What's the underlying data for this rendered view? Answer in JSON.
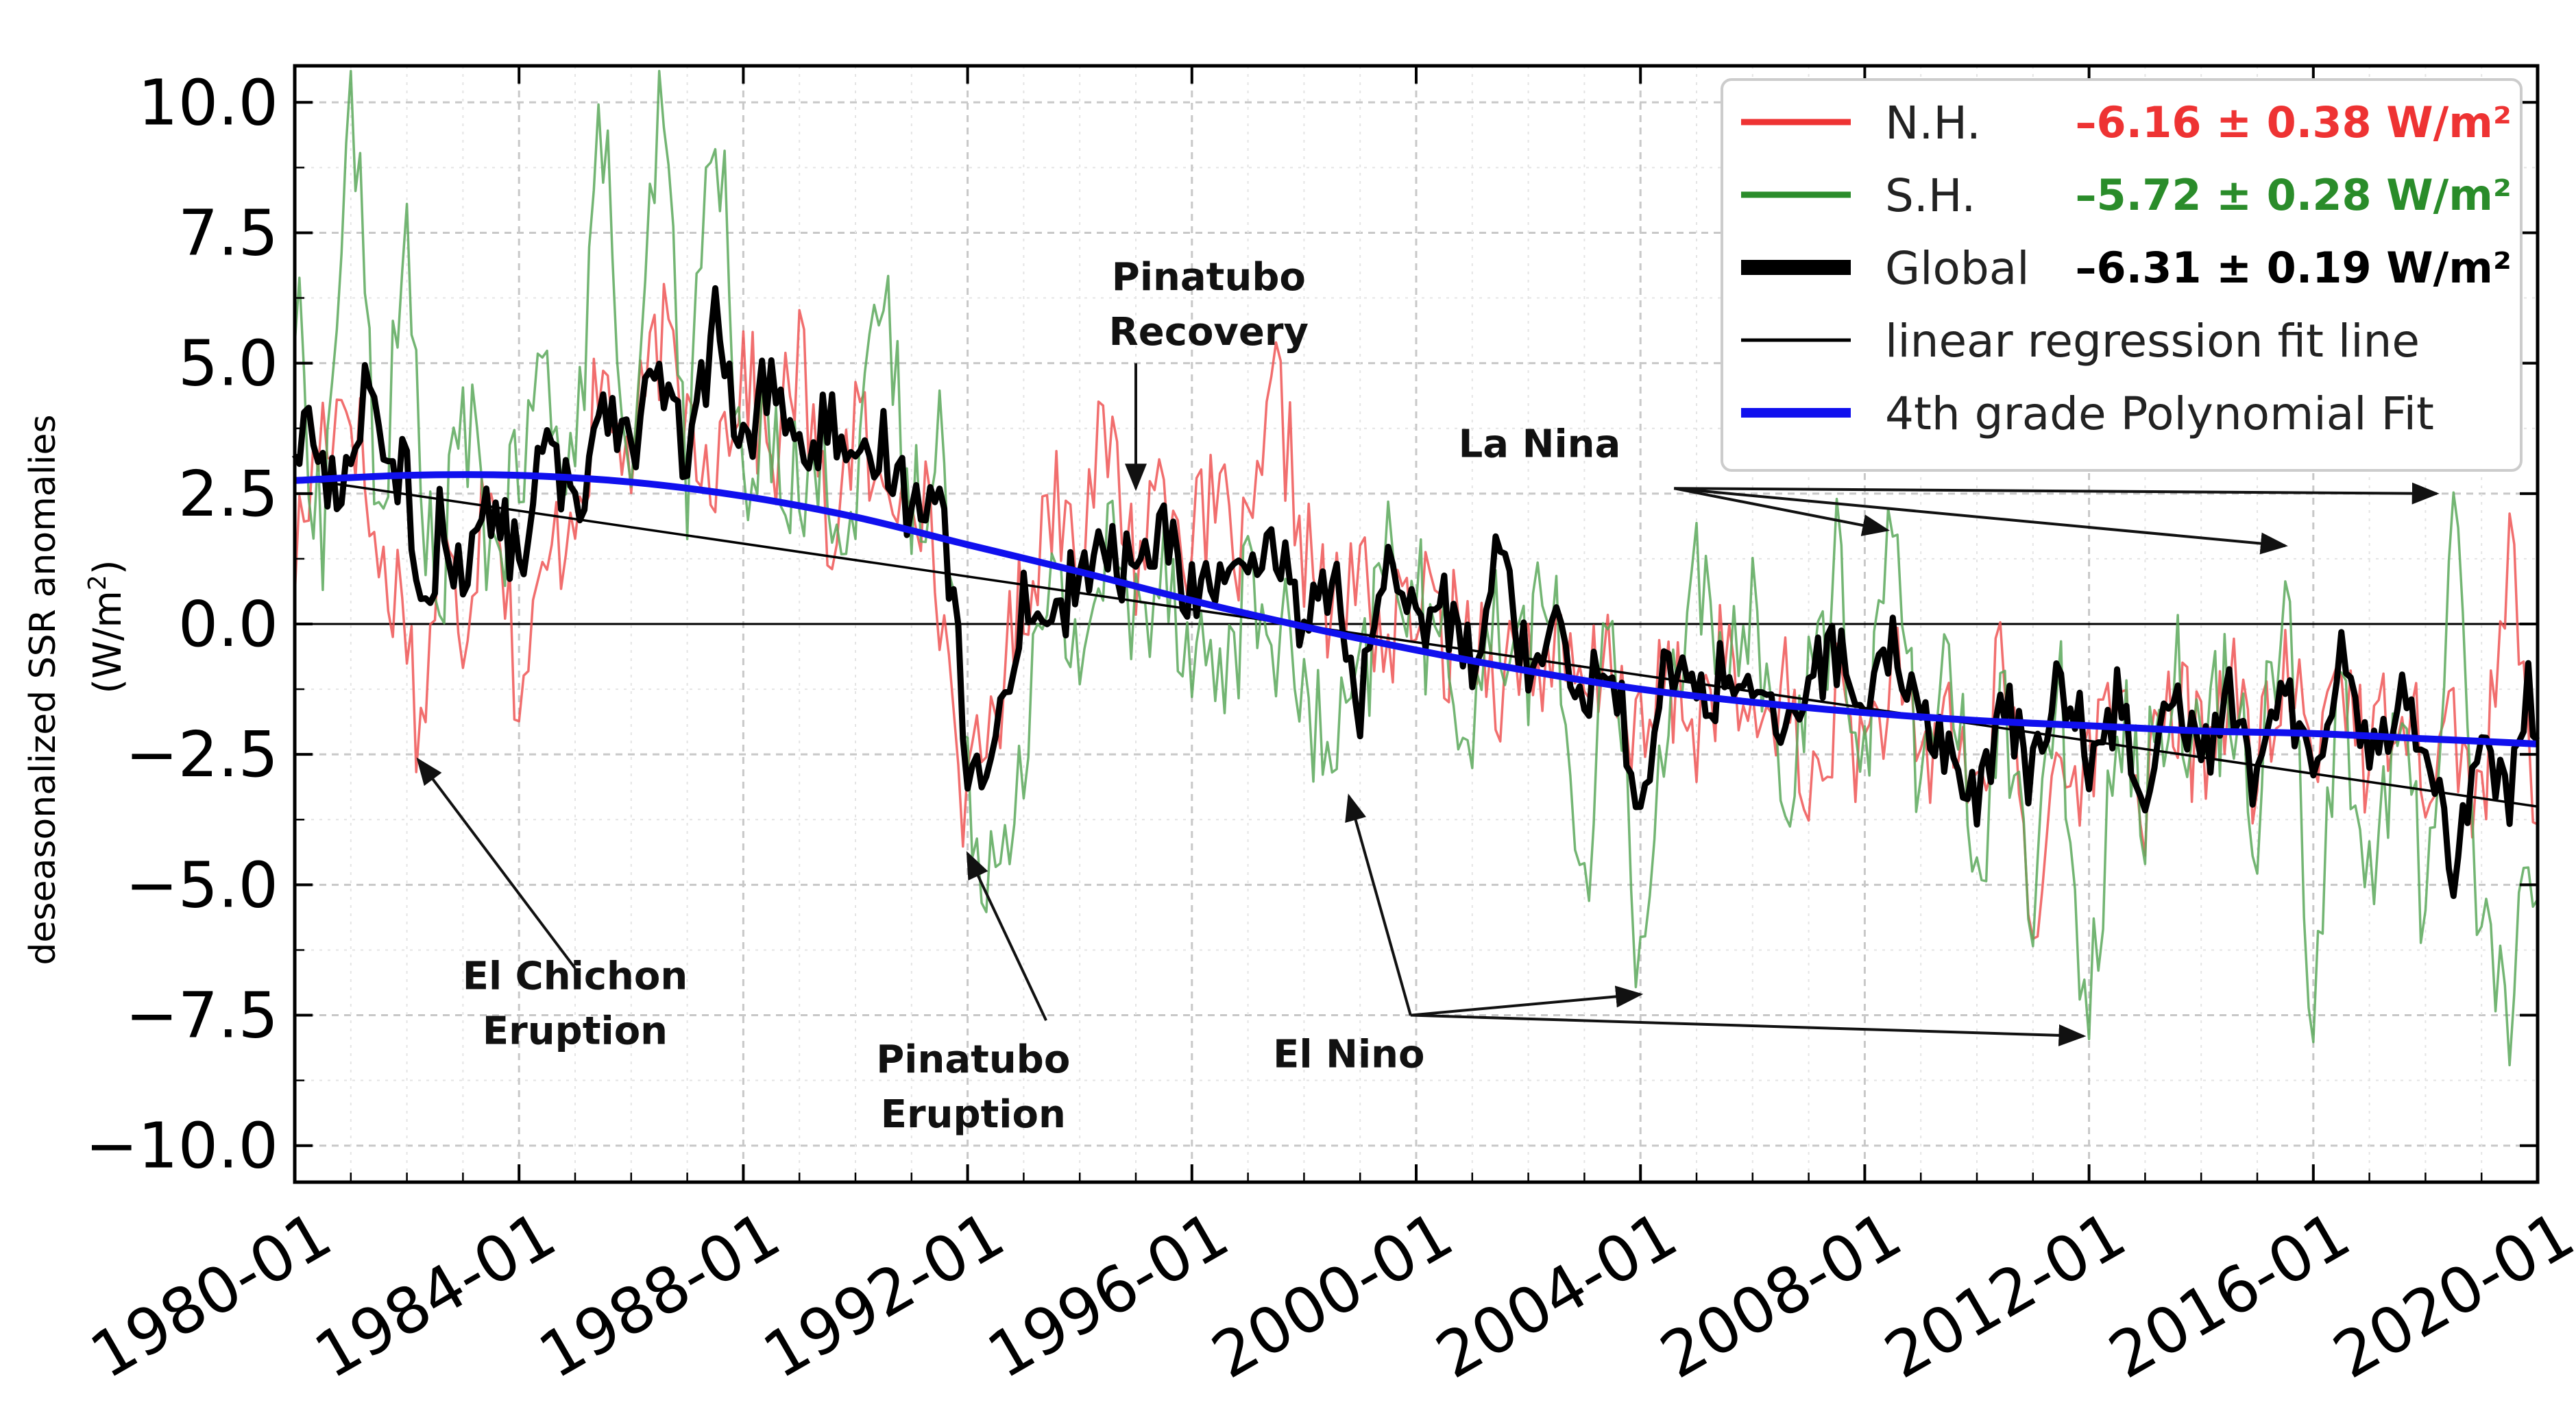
{
  "chart_data": {
    "type": "line",
    "ylabel": "deseasonalized SSR anomalies",
    "yunit_base": "(W/m",
    "yunit_sup": "2",
    "yunit_close": ")",
    "xlim": [
      1980.0,
      2020.0
    ],
    "ylim": [
      -10.7,
      10.7
    ],
    "xticks": [
      1980,
      1984,
      1988,
      1992,
      1996,
      2000,
      2004,
      2008,
      2012,
      2016,
      2020
    ],
    "xtick_labels": [
      "1980-01",
      "1984-01",
      "1988-01",
      "1992-01",
      "1996-01",
      "2000-01",
      "2004-01",
      "2008-01",
      "2012-01",
      "2016-01",
      "2020-01"
    ],
    "yticks": [
      10.0,
      7.5,
      5.0,
      2.5,
      0.0,
      -2.5,
      -5.0,
      -7.5,
      -10.0
    ],
    "ytick_labels": [
      "10.0",
      "7.5",
      "5.0",
      "2.5",
      "0.0",
      "−2.5",
      "−5.0",
      "−7.5",
      "−10.0"
    ],
    "grid": true,
    "zero_line": true,
    "legend_position": "top-right",
    "legend": [
      {
        "label": "N.H.",
        "stat": "–6.16 ± 0.38 W/m²",
        "color": "#ee3333",
        "width": 9
      },
      {
        "label": "S.H.",
        "stat": "–5.72 ± 0.28 W/m²",
        "color": "#2a8c2a",
        "width": 9
      },
      {
        "label": "Global",
        "stat": "–6.31 ± 0.19 W/m²",
        "color": "#000000",
        "width": 22
      },
      {
        "label": "linear regression fit line",
        "stat": "",
        "color": "#000000",
        "width": 5
      },
      {
        "label": "4th grade Polynomial Fit",
        "stat": "",
        "color": "#1010ee",
        "width": 14
      }
    ],
    "series": [
      {
        "name": "N.H.",
        "color": "#ee5555",
        "anchors": [
          [
            1980.0,
            1.2
          ],
          [
            1980.5,
            3.8
          ],
          [
            1981.0,
            4.5
          ],
          [
            1981.5,
            1.0
          ],
          [
            1982.0,
            0.5
          ],
          [
            1982.2,
            -2.5
          ],
          [
            1982.6,
            1.5
          ],
          [
            1983.0,
            0.0
          ],
          [
            1983.5,
            3.5
          ],
          [
            1984.0,
            -1.5
          ],
          [
            1984.5,
            1.0
          ],
          [
            1985.0,
            2.5
          ],
          [
            1985.5,
            4.5
          ],
          [
            1986.0,
            3.0
          ],
          [
            1986.5,
            5.5
          ],
          [
            1987.0,
            4.0
          ],
          [
            1987.5,
            3.2
          ],
          [
            1988.0,
            5.0
          ],
          [
            1988.5,
            3.0
          ],
          [
            1989.0,
            5.2
          ],
          [
            1989.5,
            1.5
          ],
          [
            1990.0,
            4.0
          ],
          [
            1990.5,
            2.0
          ],
          [
            1991.0,
            3.5
          ],
          [
            1991.5,
            0.5
          ],
          [
            1992.0,
            -3.7
          ],
          [
            1992.5,
            -1.5
          ],
          [
            1993.0,
            0.5
          ],
          [
            1993.5,
            2.5
          ],
          [
            1994.0,
            2.0
          ],
          [
            1994.5,
            3.5
          ],
          [
            1995.0,
            1.2
          ],
          [
            1995.5,
            3.0
          ],
          [
            1996.0,
            1.5
          ],
          [
            1996.5,
            2.2
          ],
          [
            1997.0,
            1.0
          ],
          [
            1997.5,
            4.5
          ],
          [
            1998.0,
            1.5
          ],
          [
            1998.5,
            0.0
          ],
          [
            1999.0,
            1.0
          ],
          [
            1999.5,
            -0.5
          ],
          [
            2000.0,
            0.5
          ],
          [
            2000.5,
            -0.3
          ],
          [
            2001.0,
            0.0
          ],
          [
            2001.5,
            -1.0
          ],
          [
            2002.0,
            -0.5
          ],
          [
            2002.5,
            -0.8
          ],
          [
            2003.0,
            -1.5
          ],
          [
            2003.5,
            -0.5
          ],
          [
            2004.0,
            -2.5
          ],
          [
            2004.5,
            -1.0
          ],
          [
            2005.0,
            -2.0
          ],
          [
            2005.5,
            -0.5
          ],
          [
            2006.0,
            -2.5
          ],
          [
            2006.5,
            -1.0
          ],
          [
            2007.0,
            -3.5
          ],
          [
            2007.5,
            -1.5
          ],
          [
            2008.0,
            -2.5
          ],
          [
            2008.5,
            -1.0
          ],
          [
            2009.0,
            -3.0
          ],
          [
            2009.5,
            -1.5
          ],
          [
            2010.0,
            -3.5
          ],
          [
            2010.5,
            -0.5
          ],
          [
            2011.0,
            -6.3
          ],
          [
            2011.5,
            -2.0
          ],
          [
            2012.0,
            -3.0
          ],
          [
            2012.5,
            -1.0
          ],
          [
            2013.0,
            -3.5
          ],
          [
            2013.5,
            -1.5
          ],
          [
            2014.0,
            -2.5
          ],
          [
            2014.5,
            -1.0
          ],
          [
            2015.0,
            -3.0
          ],
          [
            2015.5,
            -1.0
          ],
          [
            2016.0,
            -2.5
          ],
          [
            2016.5,
            -0.5
          ],
          [
            2017.0,
            -3.0
          ],
          [
            2017.5,
            -1.0
          ],
          [
            2018.0,
            -2.5
          ],
          [
            2018.5,
            -2.0
          ],
          [
            2019.0,
            -3.5
          ],
          [
            2019.5,
            1.2
          ],
          [
            2020.0,
            -4.0
          ]
        ],
        "noise": 1.6
      },
      {
        "name": "S.H.",
        "color": "#5aa85a",
        "anchors": [
          [
            1980.0,
            6.0
          ],
          [
            1980.5,
            1.5
          ],
          [
            1981.0,
            10.6
          ],
          [
            1981.5,
            2.0
          ],
          [
            1982.0,
            7.0
          ],
          [
            1982.5,
            0.0
          ],
          [
            1983.0,
            4.0
          ],
          [
            1983.5,
            1.5
          ],
          [
            1984.0,
            2.5
          ],
          [
            1984.5,
            5.0
          ],
          [
            1985.0,
            3.0
          ],
          [
            1985.5,
            9.8
          ],
          [
            1986.0,
            1.5
          ],
          [
            1986.5,
            10.4
          ],
          [
            1987.0,
            3.0
          ],
          [
            1987.5,
            10.5
          ],
          [
            1988.0,
            2.0
          ],
          [
            1988.5,
            4.0
          ],
          [
            1989.0,
            2.5
          ],
          [
            1989.5,
            3.0
          ],
          [
            1990.0,
            2.0
          ],
          [
            1990.5,
            6.5
          ],
          [
            1991.0,
            2.0
          ],
          [
            1991.5,
            4.0
          ],
          [
            1992.0,
            -3.5
          ],
          [
            1992.5,
            -4.5
          ],
          [
            1993.0,
            -2.0
          ],
          [
            1993.5,
            0.5
          ],
          [
            1994.0,
            -0.5
          ],
          [
            1994.5,
            1.5
          ],
          [
            1995.0,
            0.0
          ],
          [
            1995.5,
            1.5
          ],
          [
            1996.0,
            -0.5
          ],
          [
            1996.5,
            -1.0
          ],
          [
            1997.0,
            0.5
          ],
          [
            1997.5,
            0.0
          ],
          [
            1998.0,
            -1.5
          ],
          [
            1998.5,
            -2.8
          ],
          [
            1999.0,
            -1.5
          ],
          [
            1999.5,
            1.5
          ],
          [
            2000.0,
            0.5
          ],
          [
            2000.5,
            -1.0
          ],
          [
            2001.0,
            -1.5
          ],
          [
            2001.5,
            0.0
          ],
          [
            2002.0,
            -0.5
          ],
          [
            2002.5,
            0.5
          ],
          [
            2003.0,
            -6.0
          ],
          [
            2003.5,
            1.0
          ],
          [
            2004.0,
            -7.2
          ],
          [
            2004.5,
            -1.0
          ],
          [
            2005.0,
            1.0
          ],
          [
            2005.5,
            -2.0
          ],
          [
            2006.0,
            1.0
          ],
          [
            2006.5,
            -3.5
          ],
          [
            2007.0,
            -1.5
          ],
          [
            2007.5,
            1.0
          ],
          [
            2008.0,
            -2.5
          ],
          [
            2008.5,
            2.0
          ],
          [
            2009.0,
            -3.0
          ],
          [
            2009.5,
            -1.0
          ],
          [
            2010.0,
            -4.5
          ],
          [
            2010.5,
            -1.5
          ],
          [
            2011.0,
            -5.5
          ],
          [
            2011.5,
            -1.5
          ],
          [
            2012.0,
            -7.9
          ],
          [
            2012.5,
            -1.0
          ],
          [
            2013.0,
            -3.5
          ],
          [
            2013.5,
            -0.5
          ],
          [
            2014.0,
            -2.5
          ],
          [
            2014.5,
            -1.0
          ],
          [
            2015.0,
            -3.5
          ],
          [
            2015.5,
            1.6
          ],
          [
            2016.0,
            -7.5
          ],
          [
            2016.5,
            -1.0
          ],
          [
            2017.0,
            -5.5
          ],
          [
            2017.5,
            -1.5
          ],
          [
            2018.0,
            -5.8
          ],
          [
            2018.5,
            2.5
          ],
          [
            2019.0,
            -6.0
          ],
          [
            2019.5,
            -7.2
          ],
          [
            2020.0,
            -4.5
          ]
        ],
        "noise": 1.8
      },
      {
        "name": "Global",
        "color": "#000000",
        "anchors": [
          [
            1980.0,
            3.5
          ],
          [
            1980.3,
            3.8
          ],
          [
            1980.6,
            2.5
          ],
          [
            1981.0,
            3.0
          ],
          [
            1981.3,
            5.2
          ],
          [
            1981.6,
            2.5
          ],
          [
            1982.0,
            3.0
          ],
          [
            1982.3,
            -0.2
          ],
          [
            1982.6,
            2.0
          ],
          [
            1983.0,
            1.0
          ],
          [
            1983.5,
            2.2
          ],
          [
            1984.0,
            1.2
          ],
          [
            1984.5,
            3.5
          ],
          [
            1985.0,
            2.0
          ],
          [
            1985.5,
            4.5
          ],
          [
            1986.0,
            3.5
          ],
          [
            1986.5,
            4.8
          ],
          [
            1987.0,
            3.0
          ],
          [
            1987.5,
            5.8
          ],
          [
            1988.0,
            3.2
          ],
          [
            1988.5,
            5.0
          ],
          [
            1989.0,
            3.0
          ],
          [
            1989.5,
            4.0
          ],
          [
            1990.0,
            2.5
          ],
          [
            1990.5,
            3.5
          ],
          [
            1991.0,
            2.2
          ],
          [
            1991.5,
            3.0
          ],
          [
            1992.0,
            -2.5
          ],
          [
            1992.3,
            -3.4
          ],
          [
            1992.6,
            -1.5
          ],
          [
            1993.0,
            0.5
          ],
          [
            1993.5,
            0.0
          ],
          [
            1994.0,
            1.0
          ],
          [
            1994.5,
            1.3
          ],
          [
            1995.0,
            1.0
          ],
          [
            1995.5,
            1.8
          ],
          [
            1996.0,
            0.5
          ],
          [
            1996.5,
            1.0
          ],
          [
            1997.0,
            0.5
          ],
          [
            1997.5,
            1.5
          ],
          [
            1998.0,
            0.0
          ],
          [
            1998.5,
            1.0
          ],
          [
            1999.0,
            -1.5
          ],
          [
            1999.5,
            0.8
          ],
          [
            2000.0,
            0.0
          ],
          [
            2000.5,
            0.3
          ],
          [
            2001.0,
            -0.5
          ],
          [
            2001.5,
            1.5
          ],
          [
            2002.0,
            -1.0
          ],
          [
            2002.5,
            0.5
          ],
          [
            2003.0,
            -1.5
          ],
          [
            2003.5,
            -0.5
          ],
          [
            2004.0,
            -4.0
          ],
          [
            2004.5,
            -0.5
          ],
          [
            2005.0,
            -1.5
          ],
          [
            2005.5,
            -1.0
          ],
          [
            2006.0,
            -1.0
          ],
          [
            2006.5,
            -2.5
          ],
          [
            2007.0,
            -1.0
          ],
          [
            2007.5,
            -0.5
          ],
          [
            2008.0,
            -2.0
          ],
          [
            2008.5,
            -0.5
          ],
          [
            2009.0,
            -1.5
          ],
          [
            2009.5,
            -2.5
          ],
          [
            2010.0,
            -3.5
          ],
          [
            2010.5,
            -1.5
          ],
          [
            2011.0,
            -3.0
          ],
          [
            2011.5,
            -1.0
          ],
          [
            2012.0,
            -2.5
          ],
          [
            2012.5,
            -1.5
          ],
          [
            2013.0,
            -3.0
          ],
          [
            2013.5,
            -1.0
          ],
          [
            2014.0,
            -2.5
          ],
          [
            2014.5,
            -1.5
          ],
          [
            2015.0,
            -3.0
          ],
          [
            2015.5,
            -1.5
          ],
          [
            2016.0,
            -2.5
          ],
          [
            2016.5,
            -0.5
          ],
          [
            2017.0,
            -2.5
          ],
          [
            2017.5,
            -1.5
          ],
          [
            2018.0,
            -2.0
          ],
          [
            2018.5,
            -4.8
          ],
          [
            2019.0,
            -2.0
          ],
          [
            2019.5,
            -3.5
          ],
          [
            2019.8,
            -1.0
          ],
          [
            2020.0,
            -2.8
          ]
        ],
        "noise": 0.9
      }
    ],
    "linear_fit": {
      "x": [
        1980.0,
        2020.0
      ],
      "y": [
        2.8,
        -3.5
      ],
      "color": "#000000"
    },
    "poly_fit": {
      "color": "#1010ee",
      "x": [
        1980,
        1982,
        1984,
        1986,
        1988,
        1990,
        1992,
        1994,
        1996,
        1998,
        2000,
        2002,
        2004,
        2006,
        2008,
        2010,
        2012,
        2014,
        2016,
        2018,
        2020
      ],
      "y": [
        2.75,
        2.85,
        2.85,
        2.72,
        2.45,
        2.05,
        1.52,
        1.0,
        0.45,
        -0.05,
        -0.5,
        -0.9,
        -1.25,
        -1.5,
        -1.7,
        -1.85,
        -1.95,
        -2.05,
        -2.1,
        -2.2,
        -2.3
      ]
    },
    "annotations": [
      {
        "lines": [
          "El Chichon",
          "Eruption"
        ],
        "text_at": [
          1985.0,
          -7.0
        ],
        "tail_at": [
          1985.0,
          -6.6
        ],
        "arrow_to": [
          [
            1982.2,
            -2.6
          ]
        ]
      },
      {
        "lines": [
          "Pinatubo",
          "Eruption"
        ],
        "text_at": [
          1992.1,
          -8.6
        ],
        "tail_at": [
          1993.4,
          -7.6
        ],
        "arrow_to": [
          [
            1992.0,
            -4.4
          ]
        ]
      },
      {
        "lines": [
          "Pinatubo",
          "Recovery"
        ],
        "text_at": [
          1996.3,
          6.4
        ],
        "tail_at": [
          1995.0,
          5.0
        ],
        "arrow_to": [
          [
            1995.0,
            2.6
          ]
        ]
      },
      {
        "lines": [
          "El Nino"
        ],
        "text_at": [
          1998.8,
          -8.5
        ],
        "tail_at": [
          1999.9,
          -7.5
        ],
        "arrow_to": [
          [
            1998.8,
            -3.3
          ],
          [
            2004.0,
            -7.1
          ],
          [
            2011.9,
            -7.9
          ]
        ]
      },
      {
        "lines": [
          "La Nina"
        ],
        "text_at": [
          2002.2,
          3.2
        ],
        "tail_at": [
          2004.6,
          2.6
        ],
        "arrow_to": [
          [
            2008.4,
            1.8
          ],
          [
            2015.5,
            1.5
          ],
          [
            2018.2,
            2.5
          ]
        ]
      }
    ]
  }
}
